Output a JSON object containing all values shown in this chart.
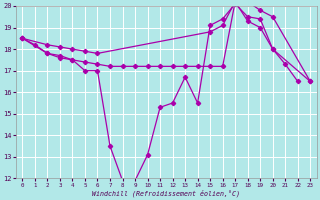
{
  "xlabel": "Windchill (Refroidissement éolien,°C)",
  "xlim": [
    -0.5,
    23.5
  ],
  "ylim": [
    12,
    20
  ],
  "yticks": [
    12,
    13,
    14,
    15,
    16,
    17,
    18,
    19,
    20
  ],
  "xticks": [
    0,
    1,
    2,
    3,
    4,
    5,
    6,
    7,
    8,
    9,
    10,
    11,
    12,
    13,
    14,
    15,
    16,
    17,
    18,
    19,
    20,
    21,
    22,
    23
  ],
  "bg_color": "#b2e8e8",
  "grid_color": "#ffffff",
  "line_color": "#aa00aa",
  "s1_x": [
    0,
    1,
    2,
    3,
    4,
    5,
    6,
    7,
    8,
    9,
    10,
    11,
    12,
    13,
    14,
    15,
    16,
    17,
    18,
    19,
    20,
    21,
    22
  ],
  "s1_y": [
    18.5,
    18.2,
    17.8,
    17.7,
    17.5,
    17.0,
    17.0,
    13.5,
    11.9,
    11.9,
    13.1,
    15.3,
    15.5,
    16.7,
    15.5,
    19.1,
    19.4,
    20.1,
    19.5,
    19.4,
    18.0,
    17.3,
    16.5
  ],
  "s2_x": [
    0,
    2,
    3,
    4,
    5,
    6,
    15,
    16,
    17,
    18,
    19,
    20,
    23
  ],
  "s2_y": [
    18.5,
    18.2,
    18.1,
    18.0,
    17.9,
    17.8,
    18.8,
    19.1,
    20.2,
    20.2,
    19.8,
    19.5,
    16.5
  ],
  "s3_x": [
    0,
    2,
    3,
    4,
    5,
    6,
    7,
    8,
    9,
    10,
    11,
    12,
    13,
    14,
    15,
    16,
    17,
    18,
    19,
    20,
    23
  ],
  "s3_y": [
    18.5,
    17.8,
    17.6,
    17.5,
    17.4,
    17.3,
    17.2,
    17.2,
    17.2,
    17.2,
    17.2,
    17.2,
    17.2,
    17.2,
    17.2,
    17.2,
    20.2,
    19.3,
    19.0,
    18.0,
    16.5
  ]
}
